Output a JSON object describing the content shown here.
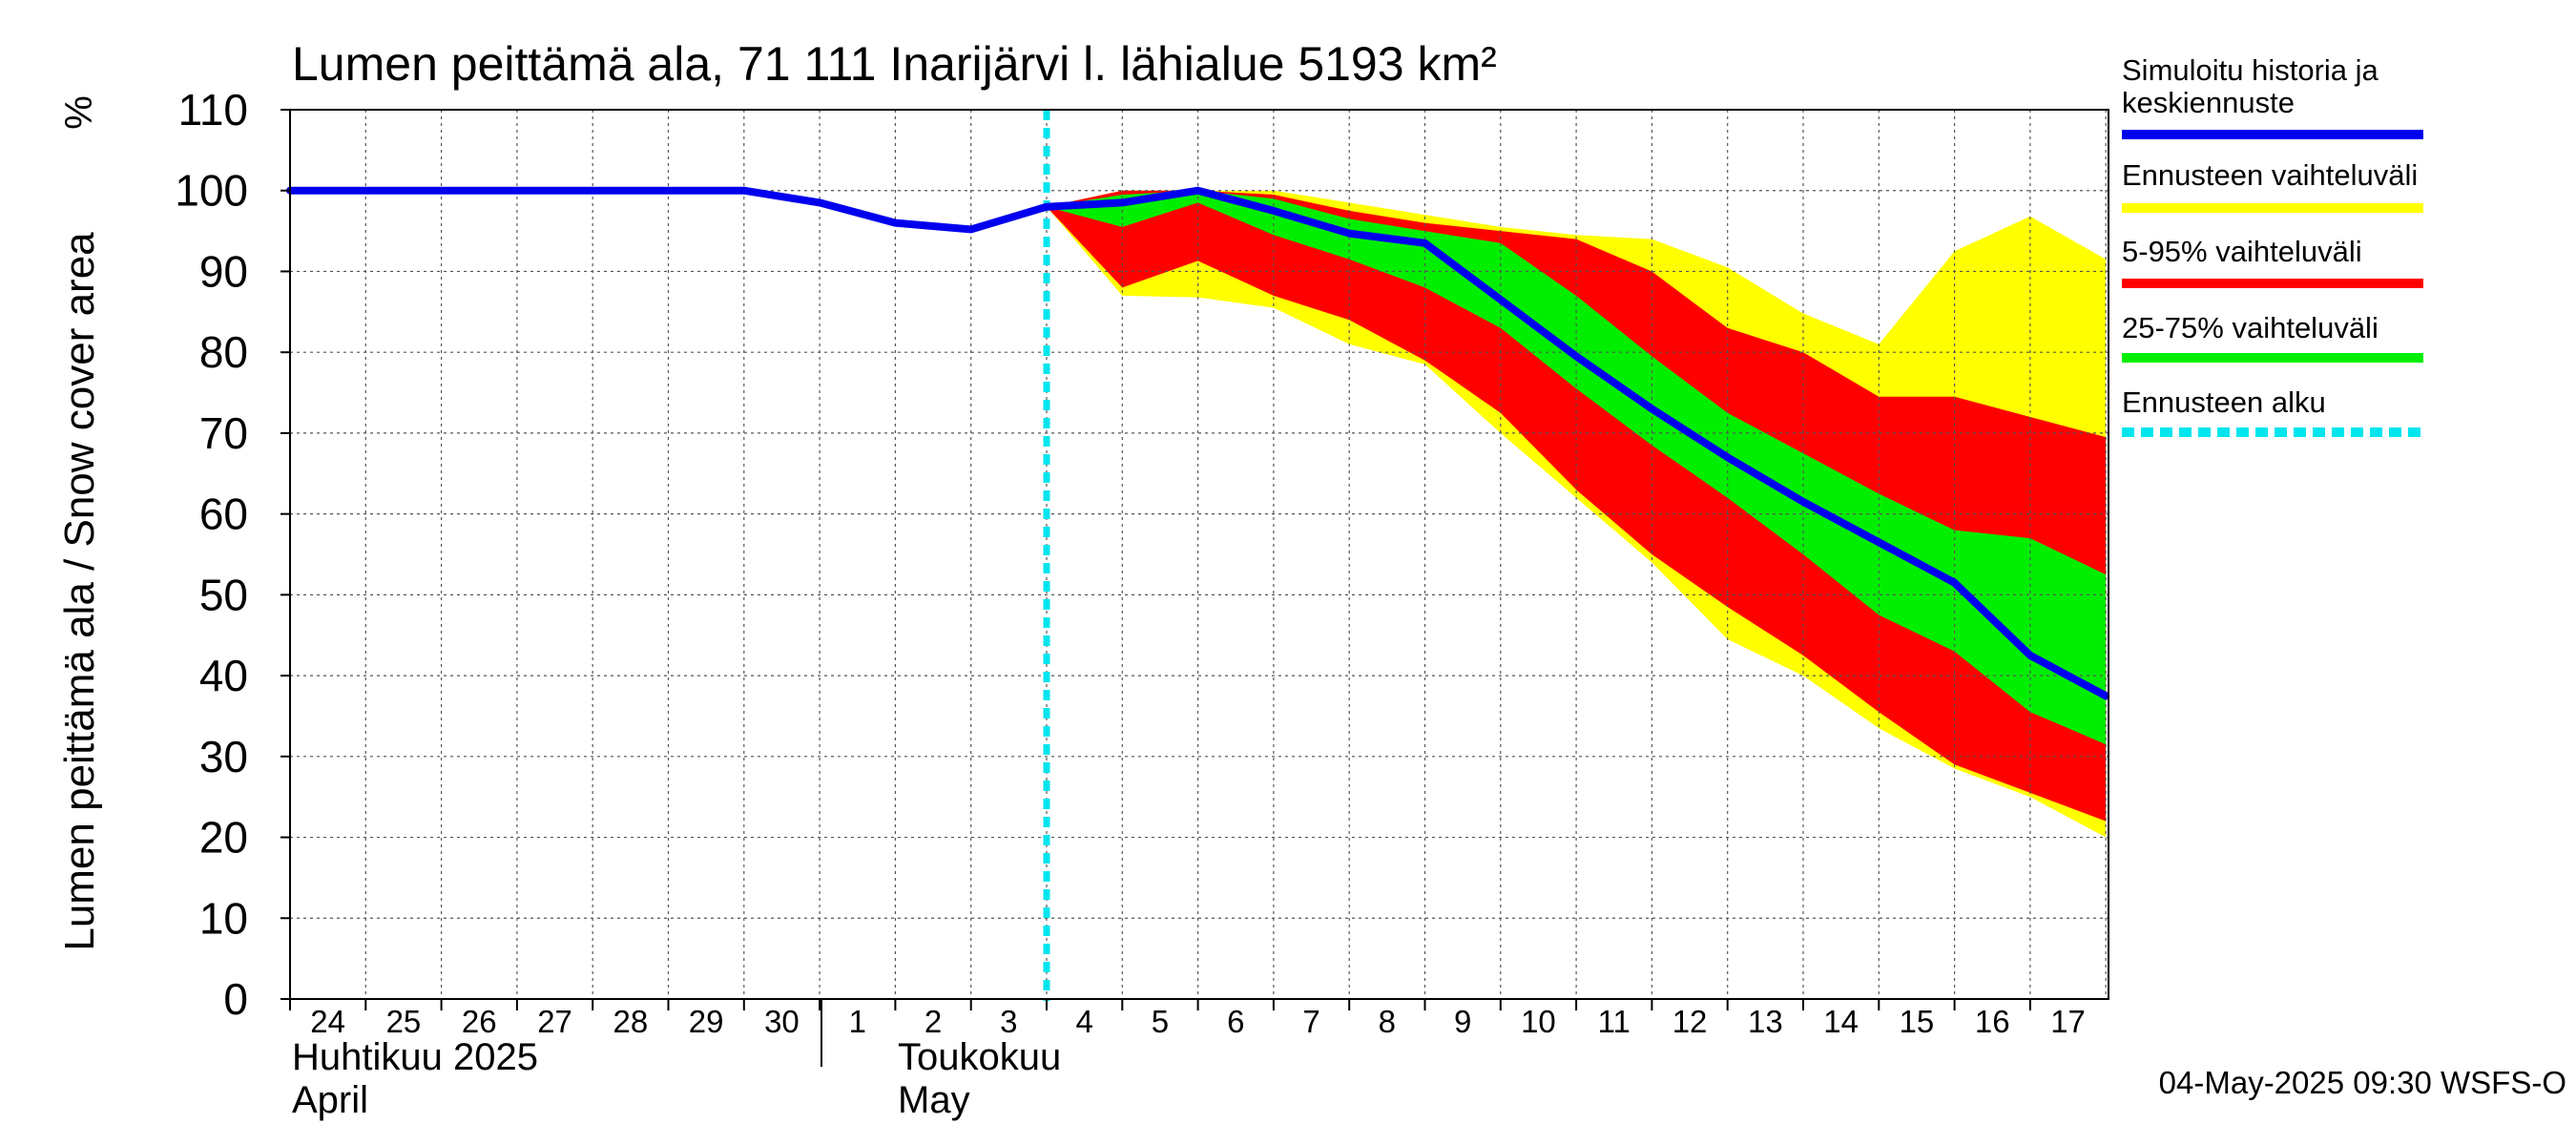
{
  "chart_data": {
    "type": "area",
    "title": "Lumen peittämä ala, 71 111 Inarijärvi l. lähialue 5193 km²",
    "ylabel": "Lumen peittämä ala / Snow cover area",
    "yunit": "%",
    "ylim": [
      0,
      110
    ],
    "yticks": [
      0,
      10,
      20,
      30,
      40,
      50,
      60,
      70,
      80,
      90,
      100,
      110
    ],
    "xlim": [
      "2025-04-24",
      "2025-05-17"
    ],
    "x_tick_labels": [
      "24",
      "25",
      "26",
      "27",
      "28",
      "29",
      "30",
      "1",
      "2",
      "3",
      "4",
      "5",
      "6",
      "7",
      "8",
      "9",
      "10",
      "11",
      "12",
      "13",
      "14",
      "15",
      "16",
      "17"
    ],
    "month_labels": [
      {
        "fi": "Huhtikuu  2025",
        "en": "April"
      },
      {
        "fi": "Toukokuu",
        "en": "May"
      }
    ],
    "grid": true,
    "legend_position": "right",
    "legend": [
      {
        "label": "Simuloitu historia ja keskiennuste",
        "color": "#0000ee"
      },
      {
        "label": "Ennusteen vaihteluväli",
        "color": "#ffff00"
      },
      {
        "label": "5-95% vaihteluväli",
        "color": "#ff0000"
      },
      {
        "label": "25-75% vaihteluväli",
        "color": "#00ee00"
      },
      {
        "label": "Ennusteen alku",
        "color": "#00e5ee"
      }
    ],
    "forecast_start": "2025-05-04",
    "series": [
      {
        "name": "Simuloitu historia ja keskiennuste",
        "x": [
          "2025-04-24",
          "2025-04-25",
          "2025-04-26",
          "2025-04-27",
          "2025-04-28",
          "2025-04-29",
          "2025-04-30",
          "2025-05-01",
          "2025-05-02",
          "2025-05-03",
          "2025-05-04",
          "2025-05-05",
          "2025-05-06",
          "2025-05-07",
          "2025-05-08",
          "2025-05-09",
          "2025-05-10",
          "2025-05-11",
          "2025-05-12",
          "2025-05-13",
          "2025-05-14",
          "2025-05-15",
          "2025-05-16",
          "2025-05-17",
          "2025-05-18"
        ],
        "values": [
          100,
          100,
          100,
          100,
          100,
          100,
          100,
          98.5,
          96,
          95.2,
          98,
          98.5,
          100,
          97.5,
          94.7,
          93.5,
          86.5,
          79.5,
          73,
          67,
          61.5,
          56.5,
          51.5,
          42.5,
          37.5
        ]
      }
    ],
    "bands": [
      {
        "name": "Ennusteen vaihteluväli",
        "x": [
          "2025-05-04",
          "2025-05-05",
          "2025-05-06",
          "2025-05-07",
          "2025-05-08",
          "2025-05-09",
          "2025-05-10",
          "2025-05-11",
          "2025-05-12",
          "2025-05-13",
          "2025-05-14",
          "2025-05-15",
          "2025-05-16",
          "2025-05-17",
          "2025-05-18"
        ],
        "lower": [
          98,
          87,
          86.8,
          85.5,
          81,
          78.5,
          70,
          62,
          54,
          44.5,
          40,
          33.5,
          28.5,
          25,
          20
        ],
        "upper": [
          98,
          100,
          100,
          100,
          98.5,
          97,
          95.5,
          94.5,
          94,
          90.5,
          84.8,
          81,
          92.5,
          96.8,
          91.5
        ]
      },
      {
        "name": "5-95% vaihteluväli",
        "x": [
          "2025-05-04",
          "2025-05-05",
          "2025-05-06",
          "2025-05-07",
          "2025-05-08",
          "2025-05-09",
          "2025-05-10",
          "2025-05-11",
          "2025-05-12",
          "2025-05-13",
          "2025-05-14",
          "2025-05-15",
          "2025-05-16",
          "2025-05-17",
          "2025-05-18"
        ],
        "lower": [
          98,
          88,
          91.3,
          87,
          84,
          79,
          72.5,
          63,
          55,
          48.5,
          42.5,
          35.5,
          29,
          25.5,
          22
        ],
        "upper": [
          98,
          100,
          100,
          99.5,
          97.5,
          96,
          95,
          94,
          90,
          83,
          80,
          74.5,
          74.5,
          72,
          69.5
        ]
      },
      {
        "name": "25-75% vaihteluväli",
        "x": [
          "2025-05-04",
          "2025-05-05",
          "2025-05-06",
          "2025-05-07",
          "2025-05-08",
          "2025-05-09",
          "2025-05-10",
          "2025-05-11",
          "2025-05-12",
          "2025-05-13",
          "2025-05-14",
          "2025-05-15",
          "2025-05-16",
          "2025-05-17",
          "2025-05-18"
        ],
        "lower": [
          98,
          95.5,
          98.5,
          94.5,
          91.5,
          88,
          83,
          75.5,
          68.5,
          62,
          55,
          47.5,
          43,
          35.5,
          31.5
        ],
        "upper": [
          98,
          99.5,
          100,
          99,
          96.5,
          95,
          93.5,
          87,
          79.5,
          72.5,
          67.5,
          62.5,
          58,
          57,
          52.5
        ]
      }
    ],
    "footer": "04-May-2025 09:30 WSFS-O"
  }
}
